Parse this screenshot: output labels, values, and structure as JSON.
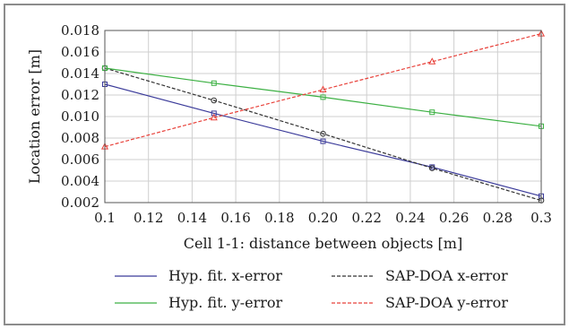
{
  "chart_data": {
    "type": "line",
    "xlabel": "Cell 1-1: distance between objects [m]",
    "ylabel": "Location error [m]",
    "xlim": [
      0.1,
      0.3
    ],
    "ylim": [
      0.002,
      0.018
    ],
    "xticks": [
      "0.1",
      "0.12",
      "0.14",
      "0.16",
      "0.18",
      "0.20",
      "0.22",
      "0.24",
      "0.26",
      "0.28",
      "0.3"
    ],
    "yticks": [
      "0.002",
      "0.004",
      "0.006",
      "0.008",
      "0.010",
      "0.012",
      "0.014",
      "0.016",
      "0.018"
    ],
    "grid": true,
    "legend_position": "bottom",
    "series": [
      {
        "name": "Hyp. fit. x-error",
        "color": "#3b3b9a",
        "dash": "solid",
        "marker": "square",
        "x": [
          0.1,
          0.15,
          0.2,
          0.25,
          0.3
        ],
        "y": [
          0.013,
          0.0103,
          0.0077,
          0.0053,
          0.0026
        ]
      },
      {
        "name": "SAP-DOA x-error",
        "color": "#333333",
        "dash": "dashed",
        "marker": "circle",
        "x": [
          0.1,
          0.15,
          0.2,
          0.25,
          0.3
        ],
        "y": [
          0.0145,
          0.0115,
          0.0084,
          0.0052,
          0.0022
        ]
      },
      {
        "name": "Hyp. fit. y-error",
        "color": "#3cb043",
        "dash": "solid",
        "marker": "square",
        "x": [
          0.1,
          0.15,
          0.2,
          0.25,
          0.3
        ],
        "y": [
          0.0145,
          0.0131,
          0.0118,
          0.0104,
          0.0091
        ]
      },
      {
        "name": "SAP-DOA y-error",
        "color": "#e8413a",
        "dash": "dashed",
        "marker": "triangle",
        "x": [
          0.1,
          0.15,
          0.2,
          0.25,
          0.3
        ],
        "y": [
          0.0072,
          0.0099,
          0.0125,
          0.0151,
          0.0177
        ]
      }
    ],
    "legend_order": [
      0,
      1,
      2,
      3
    ]
  }
}
